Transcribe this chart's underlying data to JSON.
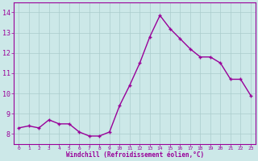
{
  "hours": [
    0,
    1,
    2,
    3,
    4,
    5,
    6,
    7,
    8,
    9,
    10,
    11,
    12,
    13,
    14,
    15,
    16,
    17,
    18,
    19,
    20,
    21,
    22,
    23
  ],
  "values": [
    8.3,
    8.4,
    8.3,
    8.7,
    8.5,
    8.5,
    8.1,
    7.9,
    7.9,
    8.1,
    9.4,
    10.4,
    11.5,
    12.8,
    13.85,
    13.2,
    12.7,
    12.2,
    11.8,
    11.8,
    11.5,
    10.7,
    10.7,
    9.9
  ],
  "line_color": "#990099",
  "marker": "+",
  "marker_size": 3.5,
  "marker_lw": 1.0,
  "bg_color": "#cce8e8",
  "grid_color": "#aacccc",
  "xlabel": "Windchill (Refroidissement éolien,°C)",
  "xlabel_color": "#990099",
  "tick_color": "#990099",
  "ylim": [
    7.5,
    14.5
  ],
  "yticks": [
    8,
    9,
    10,
    11,
    12,
    13,
    14
  ],
  "xticks": [
    0,
    1,
    2,
    3,
    4,
    5,
    6,
    7,
    8,
    9,
    10,
    11,
    12,
    13,
    14,
    15,
    16,
    17,
    18,
    19,
    20,
    21,
    22,
    23
  ],
  "line_width": 1.0
}
